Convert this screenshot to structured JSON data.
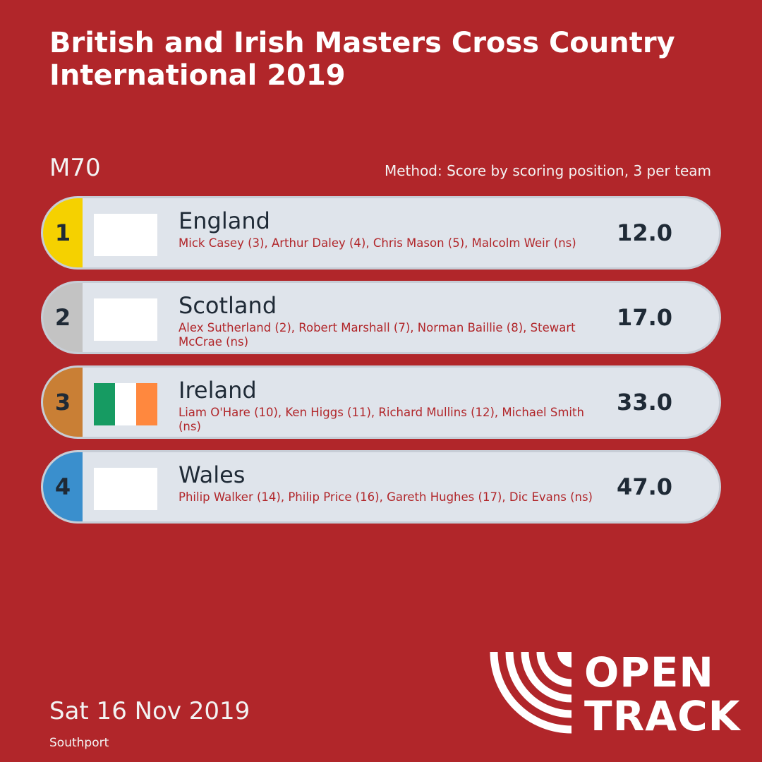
{
  "header": {
    "title": "British and Irish Masters Cross Country International 2019"
  },
  "meta": {
    "category": "M70",
    "method": "Method: Score by scoring position, 3 per team",
    "date": "Sat 16 Nov 2019",
    "venue": "Southport"
  },
  "results": [
    {
      "place": "1",
      "place_color": "#f5d100",
      "team": "England",
      "flag": "blank",
      "athletes": "Mick Casey (3), Arthur Daley (4), Chris Mason (5), Malcolm Weir (ns)",
      "score": "12.0"
    },
    {
      "place": "2",
      "place_color": "#c3c3c3",
      "team": "Scotland",
      "flag": "blank",
      "athletes": "Alex Sutherland (2), Robert Marshall (7), Norman Baillie (8), Stewart McCrae (ns)",
      "score": "17.0"
    },
    {
      "place": "3",
      "place_color": "#c97f35",
      "team": "Ireland",
      "flag": "ireland-tricolour",
      "athletes": "Liam O'Hare (10), Ken Higgs (11), Richard Mullins (12), Michael Smith (ns)",
      "score": "33.0"
    },
    {
      "place": "4",
      "place_color": "#3a8fcd",
      "team": "Wales",
      "flag": "blank",
      "athletes": "Philip Walker (14), Philip Price (16), Gareth Hughes (17), Dic Evans (ns)",
      "score": "47.0"
    }
  ],
  "logo": {
    "line1": "OPEN",
    "line2": "TRACK",
    "icon": "opentrack-lanes-icon"
  },
  "colors": {
    "background": "#b1262a",
    "row_bg": "#dfe4eb",
    "ireland_green": "#169b62",
    "ireland_orange": "#ff883e"
  }
}
